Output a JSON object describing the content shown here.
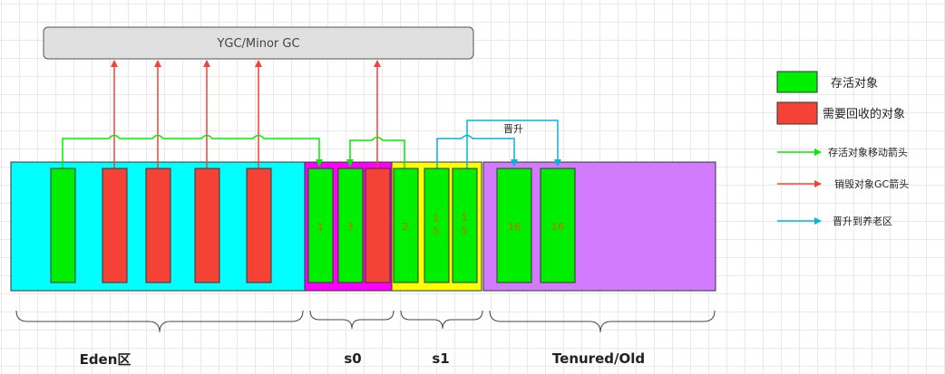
{
  "gc_box": {
    "label": "YGC/Minor GC"
  },
  "regions": {
    "eden": {
      "label": "Eden区",
      "color": "#00ffff"
    },
    "s0": {
      "label": "s0",
      "color": "#ff00ff"
    },
    "s1": {
      "label": "s1",
      "color": "#ffff00"
    },
    "old": {
      "label": "Tenured/Old",
      "color": "#d27bff"
    }
  },
  "objects": {
    "s0_age_a": "1",
    "s0_age_b": "3",
    "s1_age_a": "2",
    "s1_age_b": "15",
    "s1_age_c": "15",
    "old_age_a": "16",
    "old_age_b": "16"
  },
  "promote_label": "晋升",
  "legend": {
    "live": {
      "label": "存活对象",
      "color": "#00ff00"
    },
    "garbage": {
      "label": "需要回收的对象",
      "color": "#f44336"
    },
    "move_arrow": {
      "label": "存活对象移动箭头",
      "color": "#00ff00"
    },
    "gc_arrow": {
      "label": "销毁对象GC箭头",
      "color": "#f44336"
    },
    "promote_arrow": {
      "label": "晋升到养老区",
      "color": "#00b7d6"
    }
  }
}
